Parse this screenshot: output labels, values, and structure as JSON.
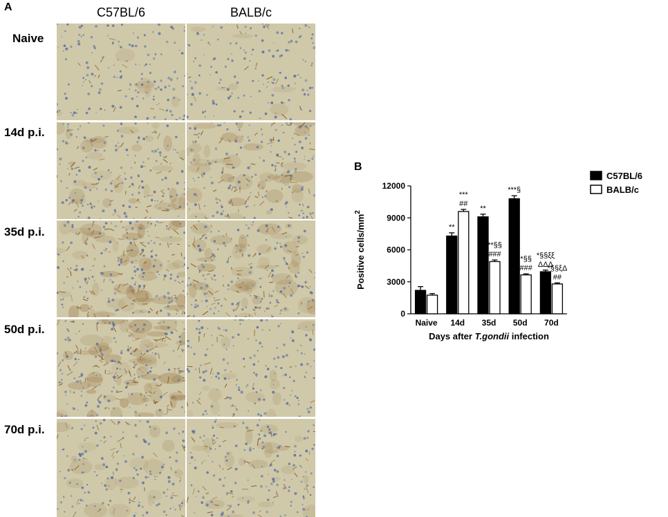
{
  "panel_a": {
    "letter": "A",
    "columns": [
      "C57BL/6",
      "BALB/c"
    ],
    "rows": [
      "Naive",
      "14d p.i.",
      "35d p.i.",
      "50d p.i.",
      "70d p.i."
    ],
    "stain_level": [
      [
        0.1,
        0.1
      ],
      [
        0.45,
        0.55
      ],
      [
        0.75,
        0.6
      ],
      [
        0.85,
        0.2
      ],
      [
        0.3,
        0.35
      ]
    ],
    "colors": {
      "background": "#cfc9aa",
      "nuclei": "#5b6f9e",
      "stain": "#8a5a22"
    }
  },
  "chart_data": {
    "type": "bar",
    "panel_letter": "B",
    "categories": [
      "Naive",
      "14d",
      "35d",
      "50d",
      "70d"
    ],
    "series": [
      {
        "name": "C57BL/6",
        "values": [
          2200,
          7300,
          9100,
          10800,
          3950
        ],
        "errors": [
          350,
          300,
          250,
          280,
          150
        ],
        "color": "#000000"
      },
      {
        "name": "BALB/c",
        "values": [
          1750,
          9600,
          4900,
          3650,
          2800
        ],
        "errors": [
          150,
          200,
          150,
          100,
          100
        ],
        "color": "#ffffff"
      }
    ],
    "xlabel_parts": [
      "Days after ",
      "T.gondii",
      " infection"
    ],
    "ylabel": "Positive cells/mm",
    "ylabel_sup": "2",
    "yticks": [
      0,
      3000,
      6000,
      9000,
      12000
    ],
    "ytick_labels": [
      "0",
      "3000",
      "6000",
      "9000",
      "12000"
    ],
    "ylim": [
      0,
      12000
    ],
    "legend_position": "right",
    "annotations": [
      {
        "category": 1,
        "series": 0,
        "lines": [
          "**"
        ]
      },
      {
        "category": 1,
        "series": 1,
        "lines": [
          "***",
          "##"
        ]
      },
      {
        "category": 2,
        "series": 0,
        "lines": [
          "**"
        ]
      },
      {
        "category": 2,
        "series": 1,
        "lines": [
          "**§§",
          "###"
        ]
      },
      {
        "category": 3,
        "series": 0,
        "lines": [
          "***§"
        ]
      },
      {
        "category": 3,
        "series": 1,
        "lines": [
          "*§§",
          "###"
        ]
      },
      {
        "category": 4,
        "series": 0,
        "lines": [
          "*§§ξξ",
          "ΔΔΔ"
        ]
      },
      {
        "category": 4,
        "series": 1,
        "lines": [
          "*§§ξΔ",
          "##"
        ]
      }
    ]
  }
}
